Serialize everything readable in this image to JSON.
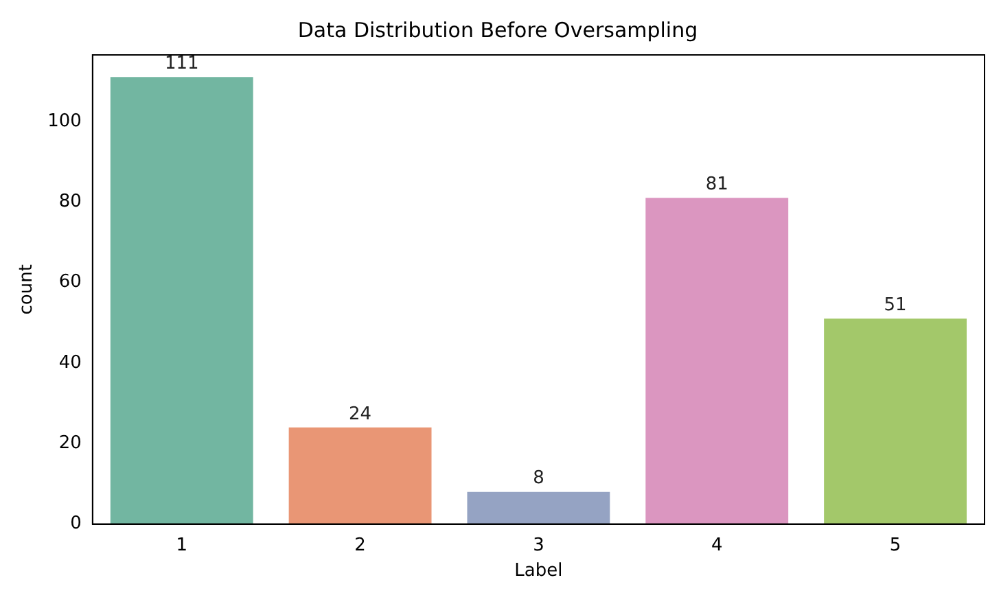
{
  "chart_data": {
    "type": "bar",
    "title": "Data Distribution Before Oversampling",
    "xlabel": "Label",
    "ylabel": "count",
    "categories": [
      "1",
      "2",
      "3",
      "4",
      "5"
    ],
    "values": [
      111,
      24,
      8,
      81,
      51
    ],
    "colors": [
      "#72b6a1",
      "#e99675",
      "#95a3c3",
      "#db96c0",
      "#a3c86a"
    ],
    "ylim": [
      0,
      116.5
    ],
    "yticks": [
      0,
      20,
      40,
      60,
      80,
      100
    ],
    "grid": false,
    "data_labels": true
  }
}
